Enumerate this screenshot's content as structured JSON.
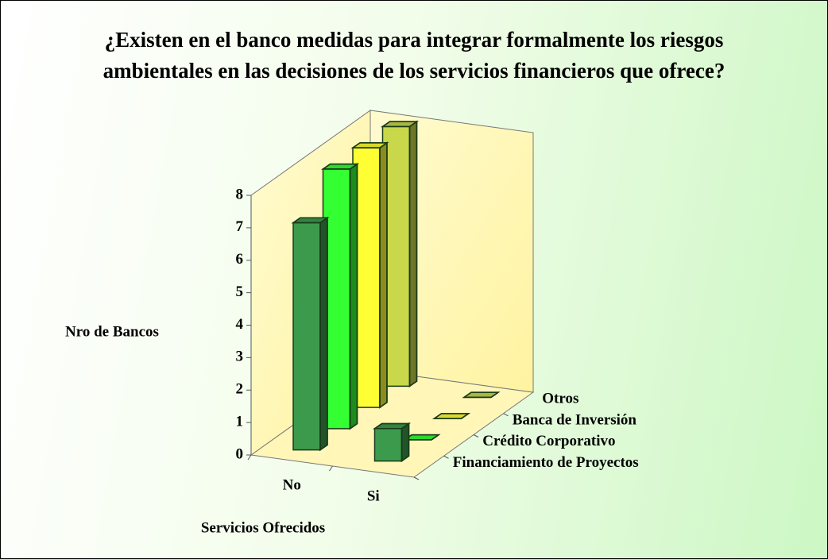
{
  "chart_data": {
    "type": "bar3d",
    "title": "¿Existen en el banco medidas para integrar formalmente los riesgos ambientales en las decisiones de los servicios financieros que ofrece?",
    "y_label": "Nro de Bancos",
    "x_label": "Servicios Ofrecidos",
    "categories": [
      "No",
      "Si"
    ],
    "series": [
      {
        "name": "Financiamiento de Proyectos",
        "color": "#3c9a4c",
        "values": [
          7,
          1
        ]
      },
      {
        "name": "Crédito Corporativo",
        "color": "#33ff33",
        "values": [
          8,
          0
        ]
      },
      {
        "name": "Banca de Inversión",
        "color": "#ffff33",
        "values": [
          8,
          0
        ]
      },
      {
        "name": "Otros",
        "color": "#c8d84a",
        "values": [
          8,
          0
        ]
      }
    ],
    "ylim": [
      0,
      8
    ],
    "yticks": [
      0,
      1,
      2,
      3,
      4,
      5,
      6,
      7,
      8
    ]
  }
}
